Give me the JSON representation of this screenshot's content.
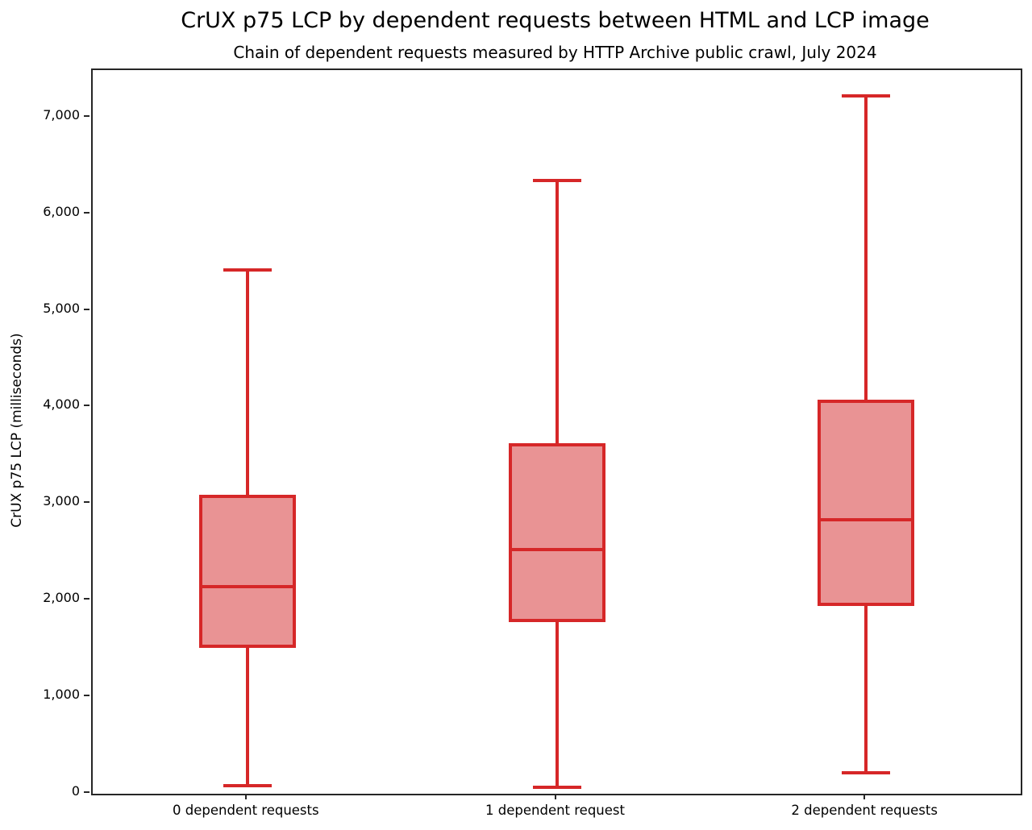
{
  "chart": {
    "title": "CrUX p75 LCP by dependent requests between HTML and LCP image",
    "subtitle": "Chain of dependent requests measured by HTTP Archive public crawl, July 2024",
    "ylabel": "CrUX p75 LCP (milliseconds)"
  },
  "chart_data": {
    "type": "boxplot",
    "title": "CrUX p75 LCP by dependent requests between HTML and LCP image",
    "subtitle": "Chain of dependent requests measured by HTTP Archive public crawl, July 2024",
    "xlabel": "",
    "ylabel": "CrUX p75 LCP (milliseconds)",
    "categories": [
      "0 dependent requests",
      "1 dependent request",
      "2 dependent requests"
    ],
    "series": [
      {
        "name": "0 dependent requests",
        "whisker_low": 80,
        "q1": 1530,
        "median": 2145,
        "q3": 3075,
        "whisker_high": 5425
      },
      {
        "name": "1 dependent request",
        "whisker_low": 65,
        "q1": 1795,
        "median": 2530,
        "q3": 3615,
        "whisker_high": 6350
      },
      {
        "name": "2 dependent requests",
        "whisker_low": 215,
        "q1": 1960,
        "median": 2840,
        "q3": 4065,
        "whisker_high": 7225
      }
    ],
    "ylim": [
      0,
      7490
    ],
    "yticks": [
      0,
      1000,
      2000,
      3000,
      4000,
      5000,
      6000,
      7000
    ],
    "ytick_labels": [
      "0",
      "1,000",
      "2,000",
      "3,000",
      "4,000",
      "5,000",
      "6,000",
      "7,000"
    ],
    "grid": false,
    "legend": "none",
    "colors": {
      "box_edge": "#d62728",
      "box_fill": "#e99394",
      "axis": "#262626",
      "text": "#000000",
      "background": "#ffffff"
    }
  }
}
